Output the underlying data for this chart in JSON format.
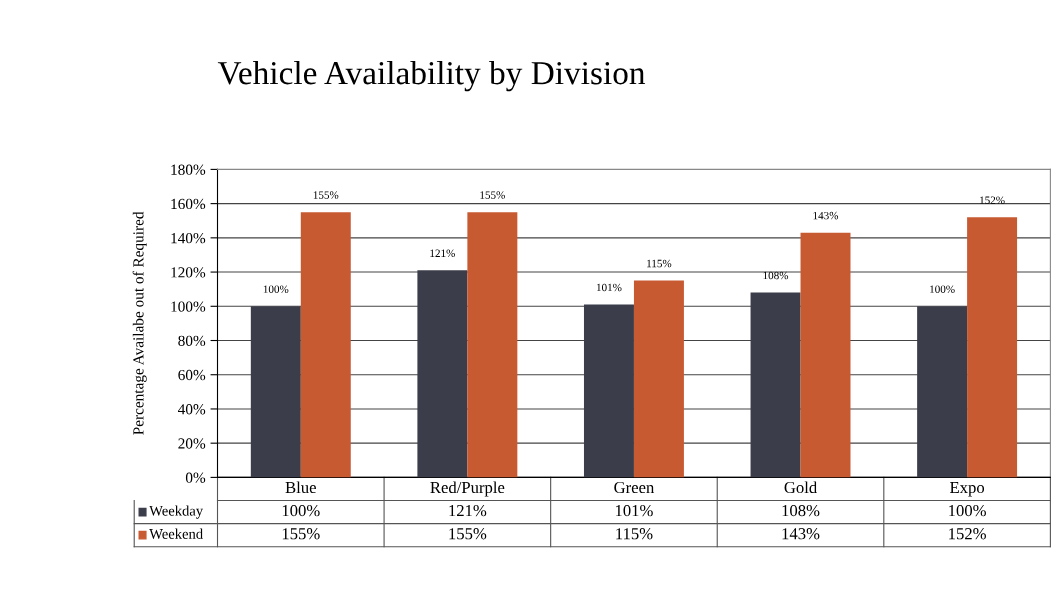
{
  "chart_data": {
    "type": "bar",
    "title": "Vehicle Availability by Division",
    "ylabel": "Percentage Availabe out of Required",
    "categories": [
      "Blue",
      "Red/Purple",
      "Green",
      "Gold",
      "Expo"
    ],
    "series": [
      {
        "name": "Weekday",
        "color": "#3b3d4a",
        "values": [
          100,
          121,
          101,
          108,
          100
        ],
        "value_labels": [
          "100%",
          "121%",
          "101%",
          "108%",
          "100%"
        ]
      },
      {
        "name": "Weekend",
        "color": "#c85a32",
        "values": [
          155,
          155,
          115,
          143,
          152
        ],
        "value_labels": [
          "155%",
          "155%",
          "115%",
          "143%",
          "152%"
        ]
      }
    ],
    "ylim": [
      0,
      180
    ],
    "yticks": [
      {
        "value": 0,
        "label": "0%"
      },
      {
        "value": 20,
        "label": "20%"
      },
      {
        "value": 40,
        "label": "40%"
      },
      {
        "value": 60,
        "label": "60%"
      },
      {
        "value": 80,
        "label": "80%"
      },
      {
        "value": 100,
        "label": "100%"
      },
      {
        "value": 120,
        "label": "120%"
      },
      {
        "value": 140,
        "label": "140%"
      },
      {
        "value": 160,
        "label": "160%"
      },
      {
        "value": 180,
        "label": "180%"
      }
    ],
    "grid": "y",
    "legend": "bottom"
  }
}
